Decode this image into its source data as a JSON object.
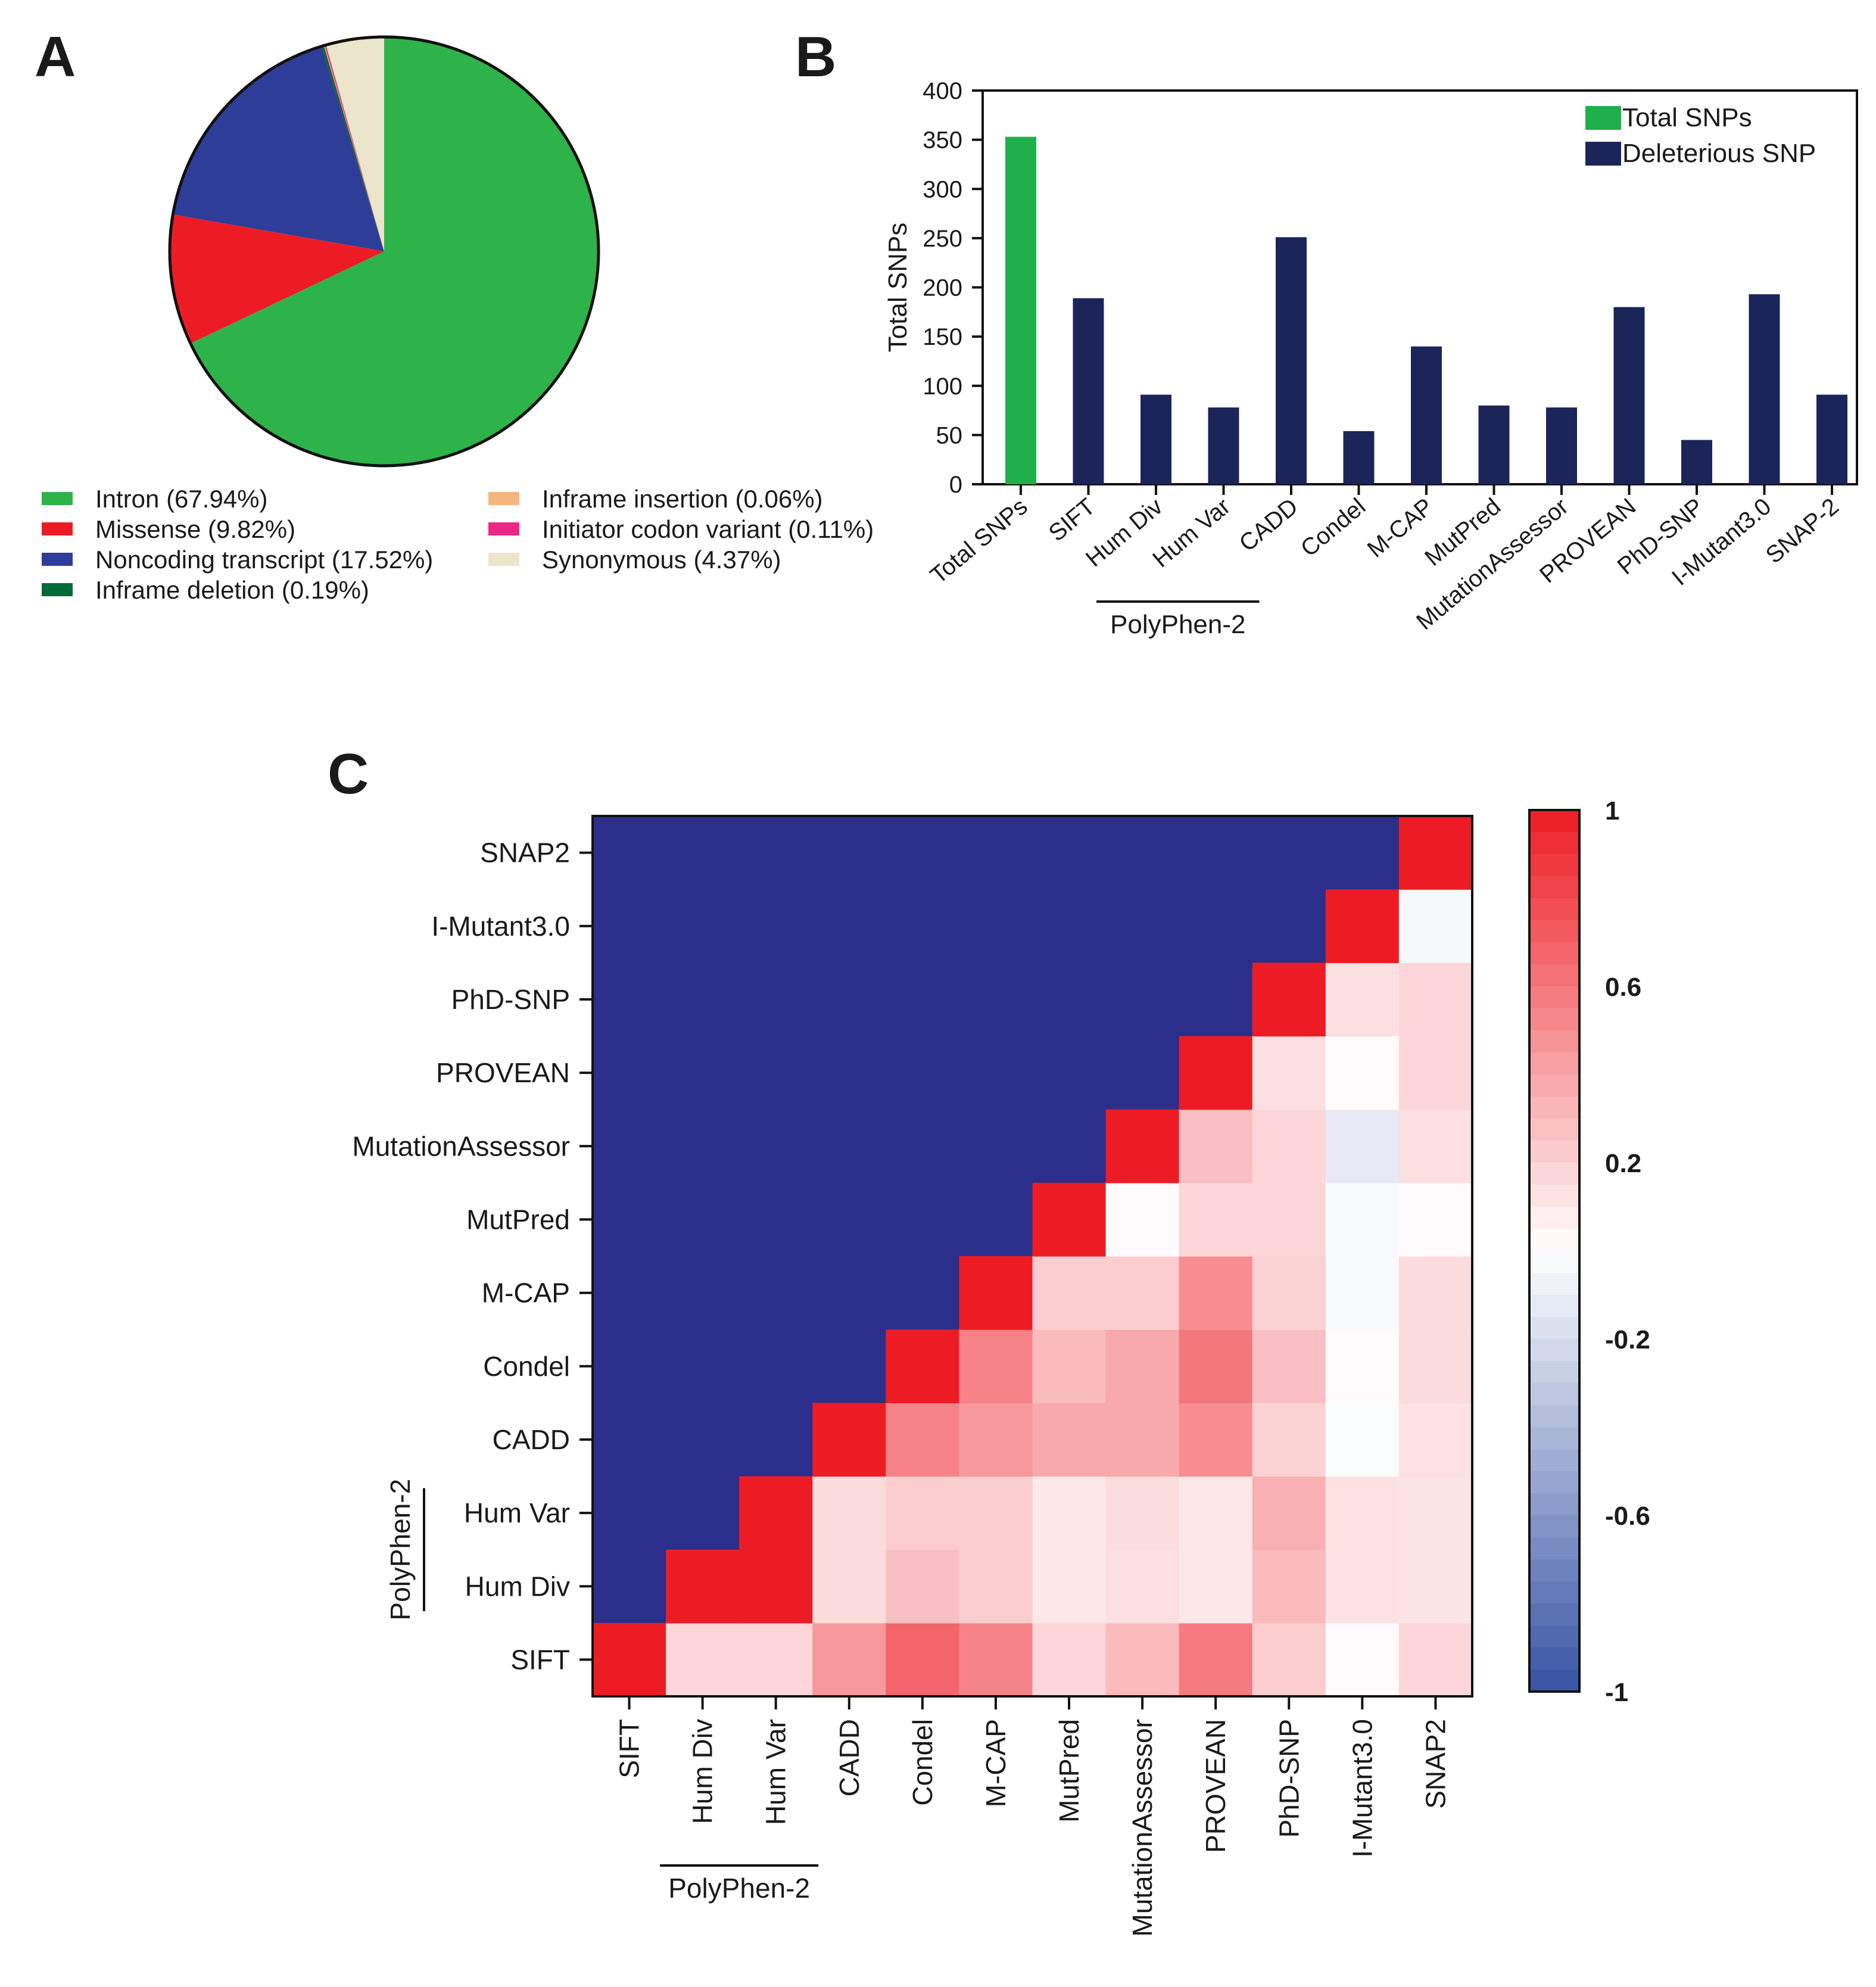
{
  "panels": {
    "a": "A",
    "b": "B",
    "c": "C"
  },
  "chart_data": [
    {
      "type": "pie",
      "panel": "A",
      "title": "",
      "legend_placement": "bottom",
      "slices": [
        {
          "label": "Intron (67.94%)",
          "value": 67.94,
          "color": "#2db34a"
        },
        {
          "label": "Missense (9.82%)",
          "value": 9.82,
          "color": "#ed1c24"
        },
        {
          "label": "Noncoding transcript (17.52%)",
          "value": 17.52,
          "color": "#2e3d98"
        },
        {
          "label": "Inframe deletion (0.19%)",
          "value": 0.19,
          "color": "#006a3b"
        },
        {
          "label": "Inframe insertion (0.06%)",
          "value": 0.06,
          "color": "#f5b57f"
        },
        {
          "label": "Initiator codon variant (0.11%)",
          "value": 0.11,
          "color": "#ec2786"
        },
        {
          "label": "Synonymous (4.37%)",
          "value": 4.37,
          "color": "#ebe5cc"
        }
      ]
    },
    {
      "type": "bar",
      "panel": "B",
      "title": "",
      "xlabel": "",
      "ylabel": "Total SNPs",
      "ylim": [
        0,
        400
      ],
      "yticks": [
        0,
        50,
        100,
        150,
        200,
        250,
        300,
        350,
        400
      ],
      "legend_placement": "top-right",
      "categories": [
        "Total SNPs",
        "SIFT",
        "Hum Div",
        "Hum Var",
        "CADD",
        "Condel",
        "M-CAP",
        "MutPred",
        "MutationAssessor",
        "PROVEAN",
        "PhD-SNP",
        "I-Mutant3.0",
        "SNAP-2"
      ],
      "values": [
        353,
        189,
        91,
        78,
        251,
        54,
        140,
        80,
        78,
        180,
        45,
        193,
        91
      ],
      "series": [
        {
          "name": "Total SNPs",
          "color": "#1fb04b",
          "categories": [
            "Total SNPs"
          ]
        },
        {
          "name": "Deleterious SNP",
          "color": "#1c2559",
          "categories": [
            "SIFT",
            "Hum Div",
            "Hum Var",
            "CADD",
            "Condel",
            "M-CAP",
            "MutPred",
            "MutationAssessor",
            "PROVEAN",
            "PhD-SNP",
            "I-Mutant3.0",
            "SNAP-2"
          ]
        }
      ],
      "group_label": {
        "text": "PolyPhen-2",
        "categories": [
          "Hum Div",
          "Hum Var"
        ]
      }
    },
    {
      "type": "heatmap",
      "panel": "C",
      "title": "",
      "labels": [
        "SIFT",
        "Hum Div",
        "Hum Var",
        "CADD",
        "Condel",
        "M-CAP",
        "MutPred",
        "MutationAssessor",
        "PROVEAN",
        "PhD-SNP",
        "I-Mutant3.0",
        "SNAP2"
      ],
      "group_label": {
        "text": "PolyPhen-2",
        "labels": [
          "Hum Div",
          "Hum Var"
        ]
      },
      "lower_triangle_color": "#2b2e8a",
      "colorbar": {
        "range": [
          -1,
          1
        ],
        "ticks": [
          "1",
          "0.6",
          "0.2",
          "-0.2",
          "-0.6",
          "-1"
        ],
        "low_color": "#3753a4",
        "mid_color": "#ffffff",
        "high_color": "#ed1c24"
      },
      "values": [
        [
          1.0,
          0.18,
          0.18,
          0.45,
          0.68,
          0.55,
          0.18,
          0.3,
          0.58,
          0.22,
          0.02,
          0.18
        ],
        [
          null,
          1.0,
          1.0,
          0.16,
          0.28,
          0.22,
          0.1,
          0.14,
          0.1,
          0.3,
          0.13,
          0.12
        ],
        [
          null,
          null,
          1.0,
          0.16,
          0.22,
          0.22,
          0.1,
          0.15,
          0.1,
          0.35,
          0.13,
          0.12
        ],
        [
          null,
          null,
          null,
          1.0,
          0.55,
          0.45,
          0.38,
          0.38,
          0.5,
          0.2,
          -0.02,
          0.13
        ],
        [
          null,
          null,
          null,
          null,
          1.0,
          0.55,
          0.3,
          0.38,
          0.6,
          0.28,
          0.02,
          0.16
        ],
        [
          null,
          null,
          null,
          null,
          null,
          1.0,
          0.22,
          0.22,
          0.5,
          0.2,
          -0.03,
          0.16
        ],
        [
          null,
          null,
          null,
          null,
          null,
          null,
          1.0,
          0.02,
          0.18,
          0.18,
          -0.03,
          0.02
        ],
        [
          null,
          null,
          null,
          null,
          null,
          null,
          null,
          1.0,
          0.28,
          0.18,
          -0.12,
          0.14
        ],
        [
          null,
          null,
          null,
          null,
          null,
          null,
          null,
          null,
          1.0,
          0.14,
          0.02,
          0.18
        ],
        [
          null,
          null,
          null,
          null,
          null,
          null,
          null,
          null,
          null,
          1.0,
          0.14,
          0.18
        ],
        [
          null,
          null,
          null,
          null,
          null,
          null,
          null,
          null,
          null,
          null,
          1.0,
          -0.04
        ],
        [
          null,
          null,
          null,
          null,
          null,
          null,
          null,
          null,
          null,
          null,
          null,
          1.0
        ]
      ]
    }
  ]
}
